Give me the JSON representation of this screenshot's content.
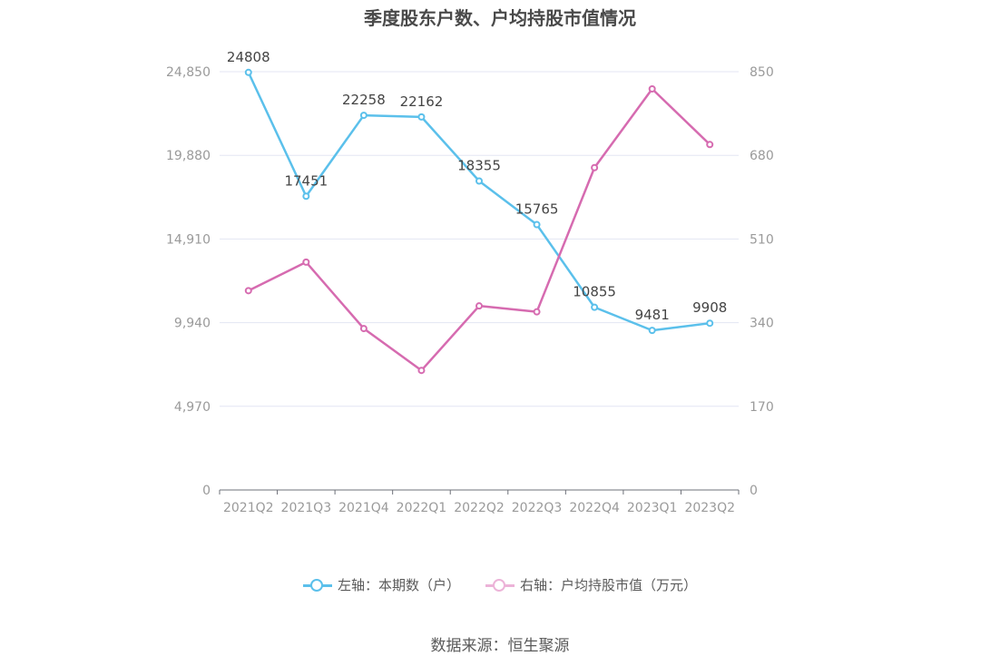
{
  "chart_data": {
    "type": "line",
    "title": "季度股东户数、户均持股市值情况",
    "categories": [
      "2021Q2",
      "2021Q3",
      "2021Q4",
      "2022Q1",
      "2022Q2",
      "2022Q3",
      "2022Q4",
      "2023Q1",
      "2023Q2"
    ],
    "left_axis": {
      "ylim": [
        0,
        24850
      ],
      "ticks": [
        "0",
        "4,970",
        "9,940",
        "14,910",
        "19,880",
        "24,850"
      ]
    },
    "right_axis": {
      "ylim": [
        0,
        850
      ],
      "ticks": [
        "0",
        "170",
        "340",
        "510",
        "680",
        "850"
      ]
    },
    "series": [
      {
        "name": "左轴：本期数（户）",
        "axis": "left",
        "color": "#5bc0eb",
        "values": [
          24808,
          17451,
          22258,
          22162,
          18355,
          15765,
          10855,
          9481,
          9908
        ],
        "labels": [
          "24808",
          "17451",
          "22258",
          "22162",
          "18355",
          "15765",
          "10855",
          "9481",
          "9908"
        ]
      },
      {
        "name": "右轴：户均持股市值（万元）",
        "axis": "right",
        "color": "#d66bb0",
        "values": [
          405,
          463,
          328,
          243,
          374,
          362,
          655,
          815,
          702
        ]
      }
    ],
    "legend_position": "bottom",
    "grid": true
  },
  "source": "数据来源：恒生聚源"
}
